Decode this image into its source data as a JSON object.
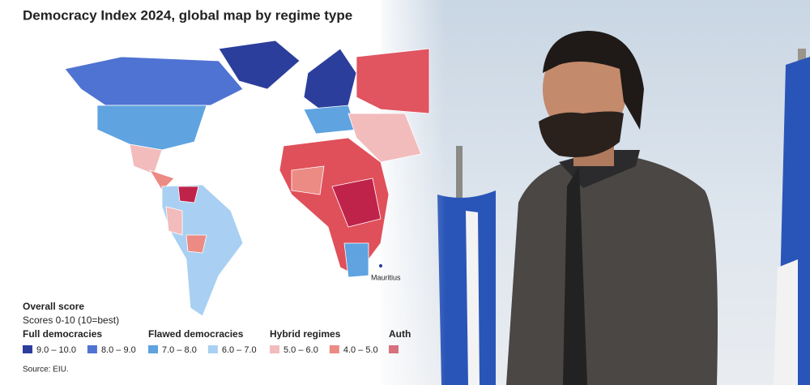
{
  "header": {
    "title": "Democracy Index 2024, global map by regime type"
  },
  "map": {
    "label": "Mauritius"
  },
  "legend": {
    "title": "Overall score",
    "subtitle": "Scores 0-10 (10=best)",
    "groups": [
      {
        "name": "Full democracies",
        "items": [
          {
            "label": "9.0 – 10.0",
            "color": "#2c3e9c"
          },
          {
            "label": "8.0 – 9.0",
            "color": "#4f73d2"
          }
        ]
      },
      {
        "name": "Flawed democracies",
        "items": [
          {
            "label": "7.0 – 8.0",
            "color": "#5fa3e0"
          },
          {
            "label": "6.0 – 7.0",
            "color": "#a9d0f2"
          }
        ]
      },
      {
        "name": "Hybrid regimes",
        "items": [
          {
            "label": "5.0 – 6.0",
            "color": "#f2bcbc"
          },
          {
            "label": "4.0 – 5.0",
            "color": "#ec8a84"
          }
        ]
      },
      {
        "name": "Auth",
        "items": [
          {
            "color": "#d9707e"
          }
        ]
      }
    ]
  },
  "source": "Source: EIU."
}
